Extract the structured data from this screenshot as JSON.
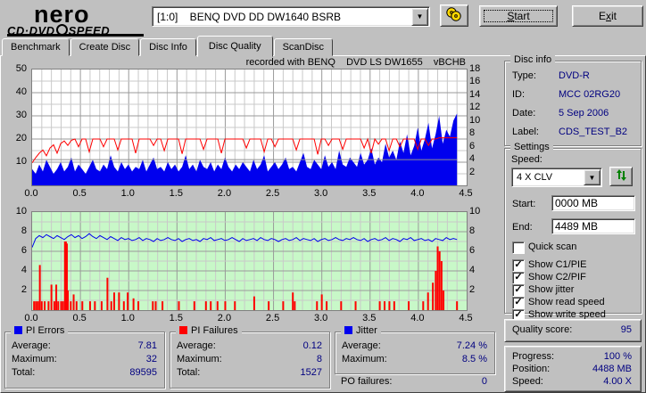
{
  "header": {
    "logo_main": "nero",
    "logo_sub_left": "CD·DVD",
    "logo_sub_right": "SPEED",
    "drive_select": "[1:0]    BENQ DVD DD DW1640 BSRB",
    "start_button": {
      "pre": "",
      "u": "S",
      "post": "tart"
    },
    "exit_button": {
      "pre": "E",
      "u": "x",
      "post": "it"
    }
  },
  "tabs": [
    {
      "label": "Benchmark",
      "active": false
    },
    {
      "label": "Create Disc",
      "active": false
    },
    {
      "label": "Disc Info",
      "active": false
    },
    {
      "label": "Disc Quality",
      "active": true
    },
    {
      "label": "ScanDisc",
      "active": false
    }
  ],
  "disc_info": {
    "title": "Disc info",
    "rows": [
      {
        "label": "Type:",
        "value": "DVD-R"
      },
      {
        "label": "ID:",
        "value": "MCC 02RG20"
      },
      {
        "label": "Date:",
        "value": "5 Sep 2006"
      },
      {
        "label": "Label:",
        "value": "CDS_TEST_B2"
      }
    ]
  },
  "settings": {
    "title": "Settings",
    "speed_label": "Speed:",
    "speed_value": "4 X CLV",
    "start_label": "Start:",
    "start_value": "0000 MB",
    "end_label": "End:",
    "end_value": "4489 MB",
    "quick_scan_label": "Quick scan",
    "quick_scan_checked": false,
    "checkboxes": [
      {
        "label": "Show C1/PIE",
        "checked": true
      },
      {
        "label": "Show C2/PIF",
        "checked": true
      },
      {
        "label": "Show jitter",
        "checked": true
      },
      {
        "label": "Show read speed",
        "checked": true
      },
      {
        "label": "Show write speed",
        "checked": true
      }
    ]
  },
  "quality": {
    "label": "Quality score:",
    "value": "95"
  },
  "progress": {
    "rows": [
      {
        "label": "Progress:",
        "value": "100 %"
      },
      {
        "label": "Position:",
        "value": "4488 MB"
      },
      {
        "label": "Speed:",
        "value": "4.00 X"
      }
    ]
  },
  "stats": {
    "pi_errors": {
      "title": "PI Errors",
      "swatch": "#0000ee",
      "rows": [
        {
          "label": "Average:",
          "value": "7.81"
        },
        {
          "label": "Maximum:",
          "value": "32"
        },
        {
          "label": "Total:",
          "value": "89595"
        }
      ]
    },
    "pi_failures": {
      "title": "PI Failures",
      "swatch": "#ff0000",
      "rows": [
        {
          "label": "Average:",
          "value": "0.12"
        },
        {
          "label": "Maximum:",
          "value": "8"
        },
        {
          "label": "Total:",
          "value": "1527"
        }
      ]
    },
    "jitter": {
      "title": "Jitter",
      "swatch": "#0000ee",
      "rows": [
        {
          "label": "Average:",
          "value": "7.24 %"
        },
        {
          "label": "Maximum:",
          "value": "8.5 %"
        }
      ]
    },
    "po_failures": {
      "label": "PO failures:",
      "value": "0"
    }
  },
  "chart_data": [
    {
      "type": "area+line",
      "name": "pi-errors-speed-chart",
      "title": "recorded with BENQ    DVD LS DW1655    vBCHB",
      "x_min": 0,
      "x_max": 4.5,
      "x_ticks": [
        "0.0",
        "0.5",
        "1.0",
        "1.5",
        "2.0",
        "2.5",
        "3.0",
        "3.5",
        "4.0",
        "4.5"
      ],
      "y_left": {
        "min": 0,
        "max": 50,
        "ticks": [
          10,
          20,
          30,
          40,
          50
        ],
        "grid_minor": 5,
        "grid_major": 10
      },
      "y_right": {
        "min": 0,
        "max": 18,
        "ticks": [
          2,
          4,
          6,
          8,
          10,
          12,
          14,
          16,
          18
        ]
      },
      "plot_bg": "#ffffff",
      "series": [
        {
          "name": "PI Errors",
          "type": "area",
          "axis": "left",
          "color": "#0000ee",
          "x_end": 4.4,
          "values": [
            7,
            5,
            9,
            6,
            11,
            8,
            5,
            7,
            10,
            6,
            8,
            12,
            6,
            9,
            7,
            5,
            8,
            11,
            7,
            6,
            9,
            7,
            13,
            8,
            6,
            10,
            7,
            9,
            6,
            8,
            7,
            11,
            6,
            9,
            12,
            7,
            8,
            6,
            10,
            7,
            9,
            6,
            8,
            13,
            7,
            9,
            6,
            11,
            8,
            7,
            10,
            6,
            9,
            7,
            12,
            8,
            6,
            9,
            7,
            10,
            8,
            6,
            11,
            7,
            9,
            13,
            6,
            8,
            10,
            7,
            9,
            12,
            7,
            8,
            6,
            10,
            14,
            8,
            7,
            11,
            9,
            7,
            13,
            8,
            10,
            7,
            15,
            9,
            8,
            12,
            10,
            8,
            14,
            9,
            11,
            16,
            9,
            12,
            10,
            18,
            12,
            15,
            11,
            19,
            14,
            22,
            13,
            17,
            25,
            15,
            20,
            27,
            16,
            22,
            30,
            18,
            24,
            21,
            28,
            31
          ]
        },
        {
          "name": "Read speed",
          "type": "line",
          "axis": "right",
          "color": "#909090",
          "x_end": 4.4,
          "values": [
            4,
            4
          ]
        },
        {
          "name": "Write speed",
          "type": "line",
          "axis": "right",
          "color": "#ff0000",
          "x_end": 4.4,
          "values": [
            3.5,
            4.3,
            5.0,
            5.5,
            4.6,
            5.8,
            6.3,
            5.0,
            6.5,
            6.9,
            6.2,
            7.0,
            7.2,
            6.0,
            7.2,
            7.2,
            5.2,
            7.2,
            7.2,
            7.2,
            6.0,
            7.2,
            7.2,
            7.2,
            5.5,
            7.2,
            7.2,
            7.2,
            7.2,
            5.0,
            7.2,
            7.2,
            7.2,
            7.2,
            6.2,
            7.2,
            7.2,
            5.4,
            7.2,
            7.2,
            7.2,
            7.2,
            4.9,
            7.2,
            7.2,
            7.2,
            7.2,
            7.2,
            5.6,
            7.2,
            7.2,
            7.2,
            7.2,
            5.0,
            7.2,
            7.2,
            7.2,
            7.2,
            7.2,
            7.2,
            5.8,
            7.2,
            7.2,
            7.2,
            7.2,
            5.2,
            7.2,
            7.2,
            6.0,
            7.2,
            7.2,
            7.2,
            7.2,
            7.2,
            5.5,
            7.2,
            7.2,
            7.2,
            7.2,
            7.2,
            4.8,
            7.2,
            7.2,
            6.2,
            7.2,
            7.2,
            7.2,
            5.6,
            7.2,
            7.2,
            7.2,
            7.2,
            7.2,
            5.8,
            7.2,
            5.0,
            7.2,
            6.4,
            7.2,
            7.2,
            5.4,
            7.2,
            7.2,
            6.0,
            7.2,
            7.2,
            7.2,
            7.2,
            5.6,
            7.2,
            7.2,
            6.2,
            7.2,
            7.2,
            7.4,
            7.4,
            7.4,
            7.4,
            7.4,
            7.4
          ]
        }
      ]
    },
    {
      "type": "line+spikes",
      "name": "jitter-pif-chart",
      "x_min": 0,
      "x_max": 4.5,
      "x_ticks": [
        "0.0",
        "0.5",
        "1.0",
        "1.5",
        "2.0",
        "2.5",
        "3.0",
        "3.5",
        "4.0",
        "4.5"
      ],
      "y_left": {
        "min": 0,
        "max": 10,
        "ticks": [
          2,
          4,
          6,
          8,
          10
        ],
        "grid_minor": 1,
        "grid_major": 2
      },
      "y_right": {
        "min": 0,
        "max": 10,
        "ticks": [
          2,
          4,
          6,
          8,
          10
        ]
      },
      "plot_bg": "#c8f8c8",
      "series": [
        {
          "name": "PI Failures",
          "type": "spikes",
          "axis": "left",
          "color": "#ff0000",
          "points": [
            [
              0.02,
              0.9
            ],
            [
              0.04,
              0.9
            ],
            [
              0.06,
              0.9
            ],
            [
              0.08,
              4.6
            ],
            [
              0.1,
              0.9
            ],
            [
              0.13,
              0.9
            ],
            [
              0.17,
              0.9
            ],
            [
              0.2,
              2.6
            ],
            [
              0.23,
              0.9
            ],
            [
              0.25,
              2.6
            ],
            [
              0.27,
              0.9
            ],
            [
              0.3,
              0.9
            ],
            [
              0.32,
              0.9
            ],
            [
              0.34,
              7.0
            ],
            [
              0.35,
              7.0
            ],
            [
              0.36,
              6.8
            ],
            [
              0.37,
              2.0
            ],
            [
              0.4,
              0.9
            ],
            [
              0.43,
              1.6
            ],
            [
              0.46,
              0.9
            ],
            [
              0.52,
              0.9
            ],
            [
              0.6,
              0.9
            ],
            [
              0.65,
              0.9
            ],
            [
              0.72,
              0.9
            ],
            [
              0.78,
              3.3
            ],
            [
              0.82,
              0.9
            ],
            [
              0.85,
              1.8
            ],
            [
              0.9,
              1.8
            ],
            [
              0.95,
              0.9
            ],
            [
              0.99,
              1.8
            ],
            [
              1.05,
              1.2
            ],
            [
              1.1,
              0.9
            ],
            [
              1.25,
              0.9
            ],
            [
              1.28,
              0.9
            ],
            [
              1.35,
              0.9
            ],
            [
              1.52,
              0.9
            ],
            [
              1.68,
              0.9
            ],
            [
              1.8,
              0.9
            ],
            [
              1.85,
              0.9
            ],
            [
              1.92,
              0.9
            ],
            [
              2.0,
              0.9
            ],
            [
              2.1,
              0.9
            ],
            [
              2.3,
              1.4
            ],
            [
              2.45,
              0.9
            ],
            [
              2.6,
              0.9
            ],
            [
              2.7,
              1.8
            ],
            [
              2.72,
              0.9
            ],
            [
              2.95,
              0.9
            ],
            [
              3.0,
              1.6
            ],
            [
              3.05,
              0.9
            ],
            [
              3.2,
              0.9
            ],
            [
              3.35,
              0.9
            ],
            [
              3.6,
              0.9
            ],
            [
              3.65,
              0.9
            ],
            [
              3.7,
              0.9
            ],
            [
              3.75,
              0.9
            ],
            [
              3.9,
              0.9
            ],
            [
              4.05,
              0.9
            ],
            [
              4.1,
              1.8
            ],
            [
              4.15,
              2.8
            ],
            [
              4.18,
              4.0
            ],
            [
              4.2,
              6.5
            ],
            [
              4.22,
              6.0
            ],
            [
              4.24,
              5.0
            ],
            [
              4.26,
              2.0
            ],
            [
              4.4,
              0.9
            ]
          ]
        },
        {
          "name": "Jitter",
          "type": "line",
          "axis": "left",
          "color": "#0000ee",
          "x_end": 4.4,
          "values": [
            6.4,
            7.3,
            7.6,
            7.4,
            7.7,
            7.5,
            7.3,
            7.6,
            7.4,
            7.2,
            7.5,
            7.7,
            7.4,
            7.6,
            7.3,
            7.5,
            7.8,
            7.5,
            7.3,
            7.6,
            7.4,
            7.2,
            7.5,
            7.3,
            7.1,
            7.4,
            7.2,
            7.3,
            7.1,
            7.2,
            7.4,
            7.1,
            7.3,
            7.2,
            7.0,
            7.3,
            7.1,
            7.2,
            7.4,
            7.2,
            7.1,
            7.3,
            7.0,
            7.2,
            7.3,
            7.1,
            7.2,
            7.0,
            7.3,
            7.2,
            7.4,
            7.1,
            7.2,
            7.3,
            7.1,
            7.2,
            7.4,
            7.2,
            7.0,
            7.3,
            7.1,
            7.2,
            7.3,
            7.1,
            7.4,
            7.2,
            7.1,
            7.3,
            7.2,
            7.0,
            7.2,
            7.3,
            7.1,
            7.2,
            7.4,
            7.1,
            7.3,
            7.2,
            7.1,
            7.3,
            7.0,
            7.2,
            7.3,
            7.1,
            7.2,
            7.4,
            7.2,
            7.1,
            7.3,
            7.2,
            7.4,
            7.2,
            7.1,
            7.3,
            7.0,
            7.2,
            7.3,
            7.1,
            7.2,
            7.4,
            7.1,
            7.3,
            7.2,
            7.0,
            7.3,
            7.2,
            7.4,
            7.1,
            7.2,
            7.3,
            7.1,
            7.2,
            7.0,
            7.3,
            7.2,
            7.1,
            7.4,
            7.2,
            7.3,
            7.2
          ]
        }
      ]
    }
  ]
}
